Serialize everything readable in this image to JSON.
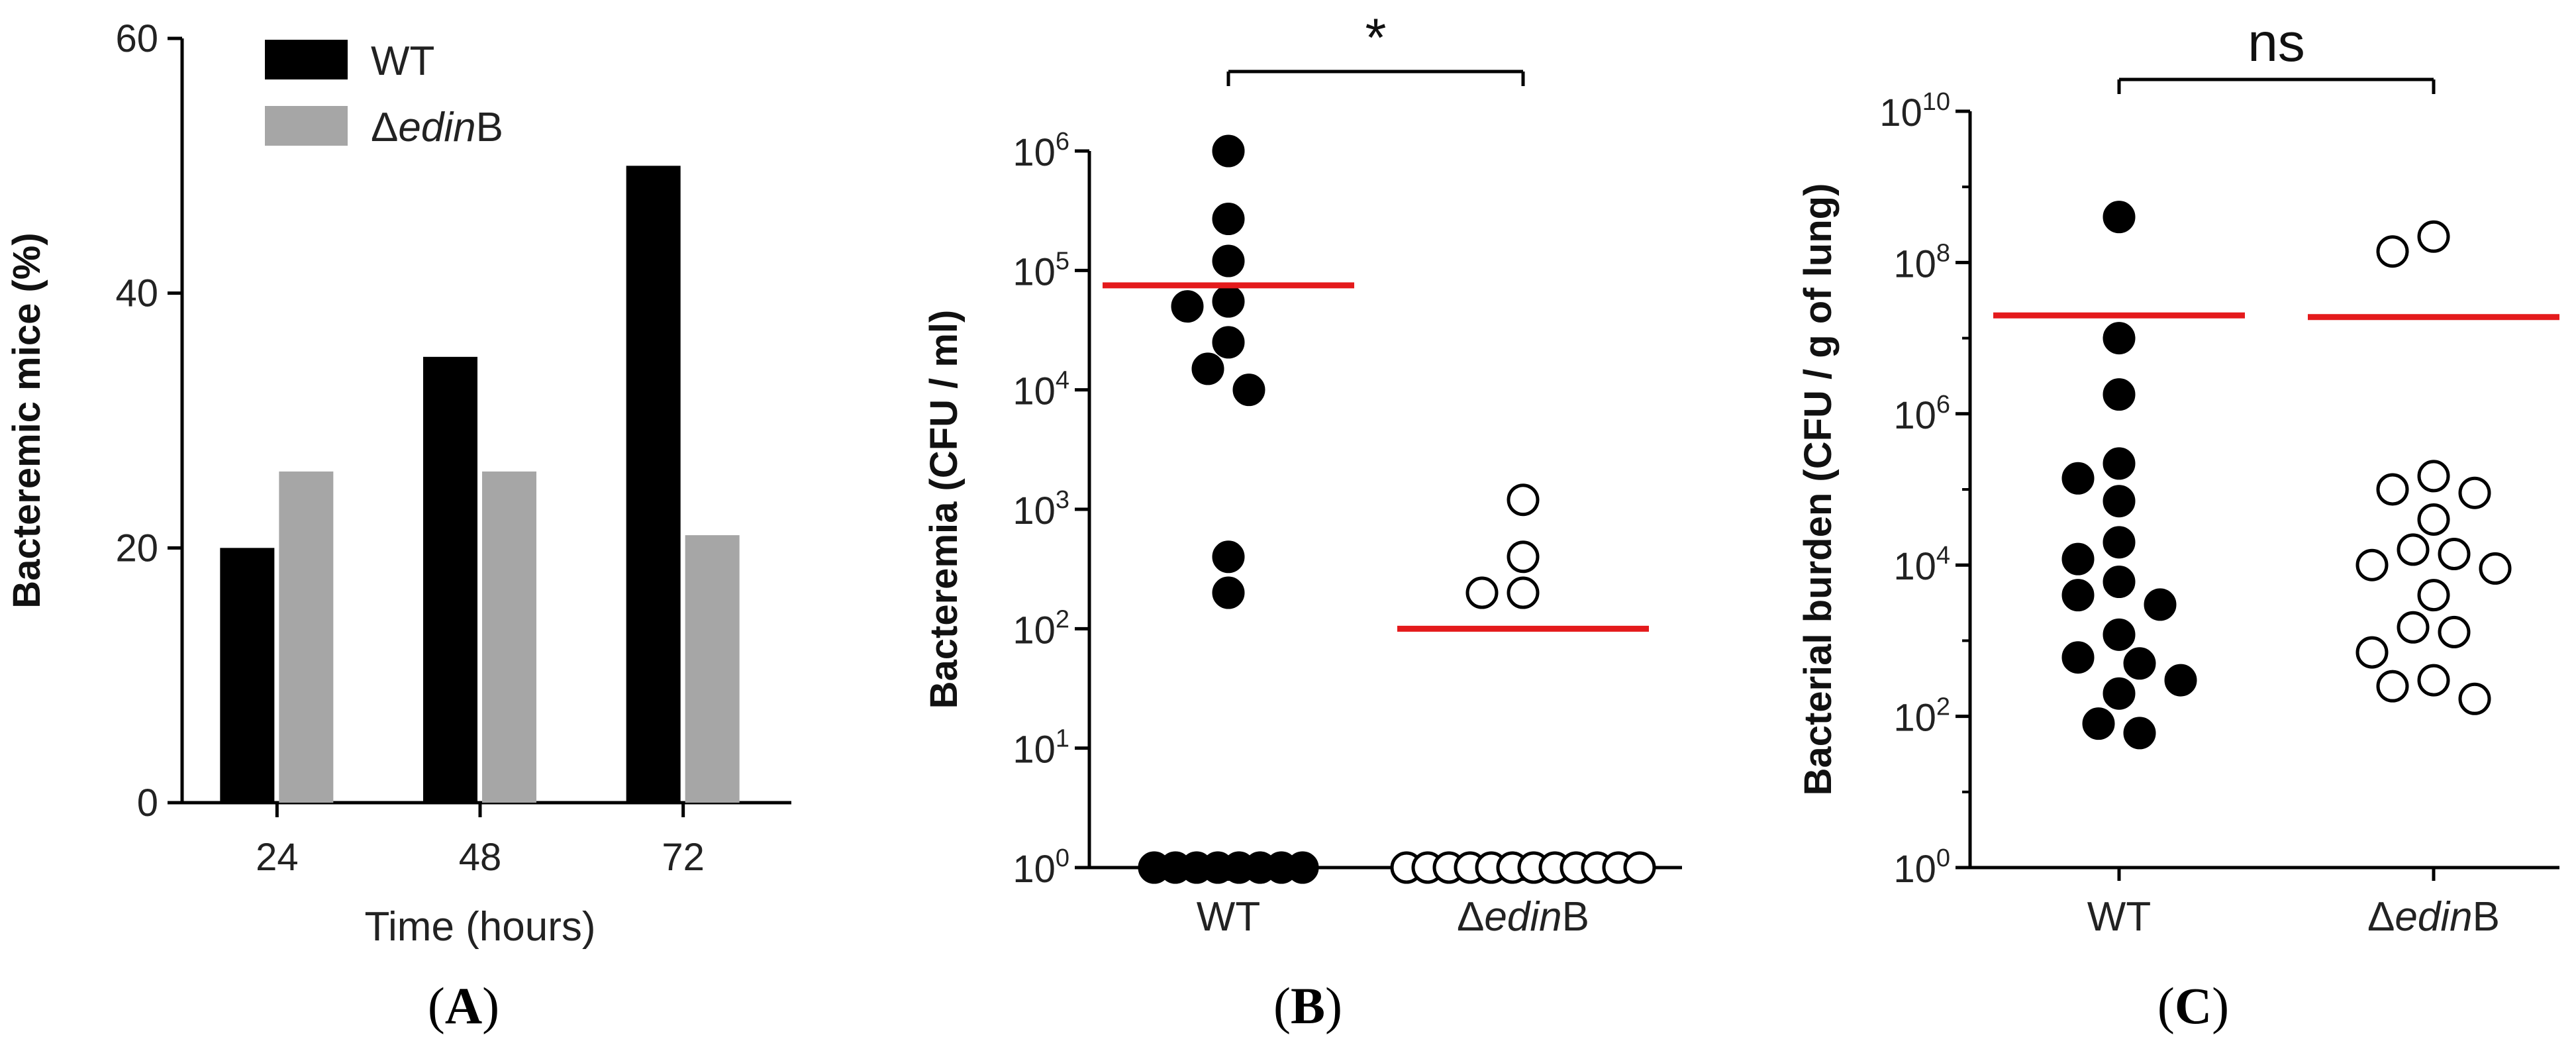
{
  "chart_data": [
    {
      "type": "bar",
      "panel_label": "A",
      "categories": [
        "24",
        "48",
        "72"
      ],
      "series": [
        {
          "name": "WT",
          "values": [
            20,
            35,
            50
          ],
          "color": "#000000"
        },
        {
          "name": "ΔedinB",
          "name_prefix": "Δ",
          "name_italic": "edin",
          "name_suffix": "B",
          "values": [
            26,
            26,
            21
          ],
          "color": "#a6a6a6"
        }
      ],
      "xlabel": "Time (hours)",
      "ylabel": "Bacteremic mice (%)",
      "ylim": [
        0,
        60
      ],
      "yticks": [
        "0",
        "20",
        "40",
        "60"
      ],
      "legend": "top-left"
    },
    {
      "type": "scatter",
      "panel_label": "B",
      "ylabel": "Bacteremia (CFU / ml)",
      "yscale": "log",
      "ylim": [
        1,
        1000000
      ],
      "ytick_exponents": [
        "0",
        "1",
        "2",
        "3",
        "4",
        "5",
        "6"
      ],
      "categories": [
        {
          "label": "WT",
          "label_prefix": "",
          "label_italic": "",
          "label_suffix": "WT"
        },
        {
          "label": "ΔedinB",
          "label_prefix": "Δ",
          "label_italic": "edin",
          "label_suffix": "B"
        }
      ],
      "series": [
        {
          "name": "WT",
          "marker": "filled",
          "values": [
            1000000,
            270000,
            120000,
            55000,
            50000,
            25000,
            15000,
            10000,
            400,
            200,
            1,
            1,
            1,
            1,
            1,
            1,
            1,
            1
          ]
        },
        {
          "name": "ΔedinB",
          "marker": "open",
          "values": [
            1200,
            400,
            200,
            200,
            1,
            1,
            1,
            1,
            1,
            1,
            1,
            1,
            1,
            1,
            1,
            1
          ]
        }
      ],
      "means": [
        75000,
        100
      ],
      "mean_color": "#e41a1c",
      "significance": "*"
    },
    {
      "type": "scatter",
      "panel_label": "C",
      "ylabel": "Bacterial burden (CFU / g of lung)",
      "yscale": "log",
      "ylim": [
        1,
        10000000000
      ],
      "ytick_exponents": [
        "0",
        "2",
        "4",
        "6",
        "8",
        "10"
      ],
      "categories": [
        {
          "label": "WT",
          "label_prefix": "",
          "label_italic": "",
          "label_suffix": "WT"
        },
        {
          "label": "ΔedinB",
          "label_prefix": "Δ",
          "label_italic": "edin",
          "label_suffix": "B"
        }
      ],
      "series": [
        {
          "name": "WT",
          "marker": "filled",
          "values": [
            400000000,
            10000000,
            1800000,
            220000,
            140000,
            70000,
            20000,
            12000,
            6000,
            4000,
            3000,
            1200,
            600,
            500,
            300,
            200,
            80,
            60
          ]
        },
        {
          "name": "ΔedinB",
          "marker": "open",
          "values": [
            220000000,
            140000000,
            150000,
            100000,
            90000,
            40000,
            16000,
            14000,
            10000,
            9000,
            4000,
            1500,
            1300,
            700,
            300,
            250,
            170
          ]
        }
      ],
      "means": [
        20000000,
        19000000
      ],
      "mean_color": "#e41a1c",
      "significance": "ns"
    }
  ]
}
